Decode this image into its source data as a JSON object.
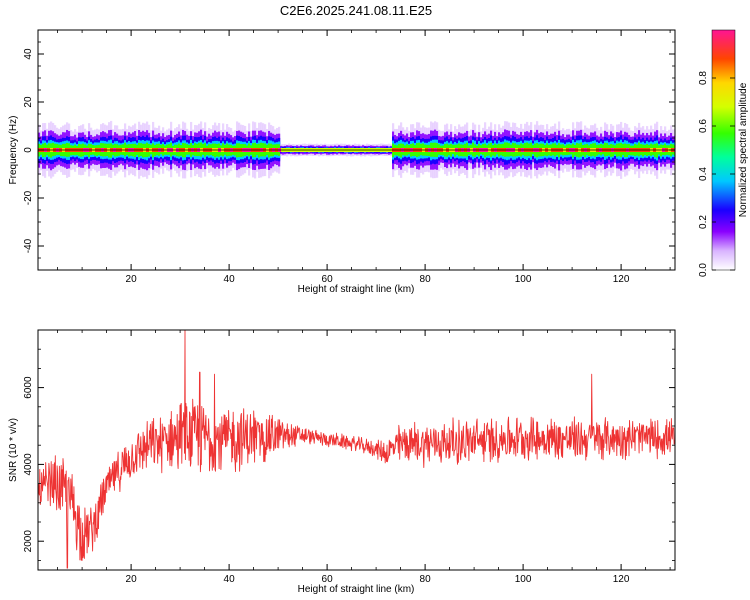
{
  "title": "C2E6.2025.241.08.11.E25",
  "colors": {
    "snr_line": "#ee3333",
    "grid_background": "#ffffff",
    "colormap": [
      "#ffffff",
      "#d9b3ff",
      "#8a00ff",
      "#1a00ff",
      "#00c8ff",
      "#00ff9c",
      "#35ff00",
      "#d4ff00",
      "#ffd700",
      "#ff4500",
      "#ff1493"
    ]
  },
  "chart_data": [
    {
      "type": "heatmap",
      "xlabel": "Height of straight line (km)",
      "ylabel": "Frequency (Hz)",
      "xlim": [
        1,
        131
      ],
      "ylim": [
        -50,
        50
      ],
      "x_ticks": [
        20,
        40,
        60,
        80,
        100,
        120
      ],
      "y_ticks": [
        -40,
        -20,
        0,
        20,
        40
      ],
      "grid": false,
      "description_of_values": "Signal energy concentrated in a narrow band around 0 Hz (roughly -5 to +5 Hz) along the entire height range; strongest near 0 Hz.",
      "band_halfwidth_hz": 5,
      "colorbar": {
        "label": "Normalized spectral amplitude",
        "range": [
          0.0,
          1.0
        ],
        "ticks": [
          "0.0",
          "0.2",
          "0.4",
          "0.6",
          "0.8"
        ]
      }
    },
    {
      "type": "line",
      "xlabel": "Height of straight line (km)",
      "ylabel": "SNR (10 * v/v)",
      "xlim": [
        1,
        131
      ],
      "ylim": [
        1250,
        7500
      ],
      "x_ticks": [
        20,
        40,
        60,
        80,
        100,
        120
      ],
      "y_ticks": [
        2000,
        4000,
        6000
      ],
      "grid": false,
      "series": [
        {
          "color": "#ee3333",
          "envelope_x": [
            1,
            5,
            8,
            10,
            12,
            15,
            18,
            22,
            28,
            30,
            35,
            40,
            45,
            50,
            55,
            60,
            65,
            70,
            72,
            75,
            80,
            90,
            100,
            110,
            120,
            131
          ],
          "envelope_mean": [
            3300,
            3500,
            3000,
            2200,
            2300,
            3400,
            3900,
            4400,
            4650,
            4700,
            4700,
            4650,
            4700,
            4750,
            4750,
            4650,
            4550,
            4400,
            4300,
            4550,
            4550,
            4600,
            4700,
            4650,
            4700,
            4700
          ],
          "envelope_spread": [
            700,
            900,
            1100,
            900,
            700,
            600,
            600,
            700,
            900,
            1100,
            1100,
            1000,
            900,
            600,
            250,
            220,
            220,
            250,
            400,
            600,
            650,
            700,
            650,
            650,
            600,
            550
          ],
          "spikes": [
            {
              "x": 31,
              "y": 7500
            },
            {
              "x": 34,
              "y": 6400
            },
            {
              "x": 37,
              "y": 6350
            },
            {
              "x": 114,
              "y": 6350
            },
            {
              "x": 10,
              "y": 1500
            },
            {
              "x": 7,
              "y": 1300
            }
          ]
        }
      ]
    }
  ]
}
